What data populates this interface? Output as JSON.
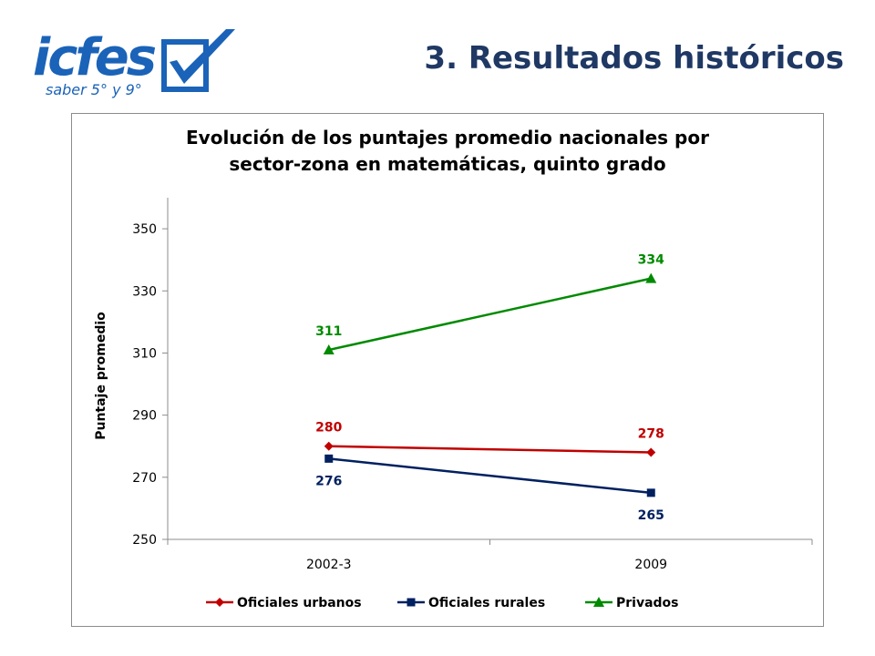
{
  "header": {
    "logo_word": "icfes",
    "logo_sub": "saber 5° y 9°",
    "slide_title": "3. Resultados históricos"
  },
  "colors": {
    "title_blue": "#1f3864",
    "logo_blue": "#1a63b8",
    "oficiales_urbanos": "#c00000",
    "oficiales_rurales": "#002060",
    "privados": "#008a00"
  },
  "chart_data": {
    "type": "line",
    "title_lines": [
      "Evolución de los puntajes promedio nacionales por",
      "sector-zona en matemáticas, quinto grado"
    ],
    "categories": [
      "2002-3",
      "2009"
    ],
    "ylabel": "Puntaje promedio",
    "ylim": [
      250,
      360
    ],
    "yticks": [
      250,
      270,
      290,
      310,
      330,
      350
    ],
    "grid": false,
    "legend_position": "bottom",
    "series": [
      {
        "name": "Oficiales urbanos",
        "values": [
          280,
          278
        ],
        "color": "#c00000",
        "marker": "diamond",
        "label_position": "above"
      },
      {
        "name": "Oficiales rurales",
        "values": [
          276,
          265
        ],
        "color": "#002060",
        "marker": "square",
        "label_position": "below"
      },
      {
        "name": "Privados",
        "values": [
          311,
          334
        ],
        "color": "#008a00",
        "marker": "triangle",
        "label_position": "above"
      }
    ]
  }
}
